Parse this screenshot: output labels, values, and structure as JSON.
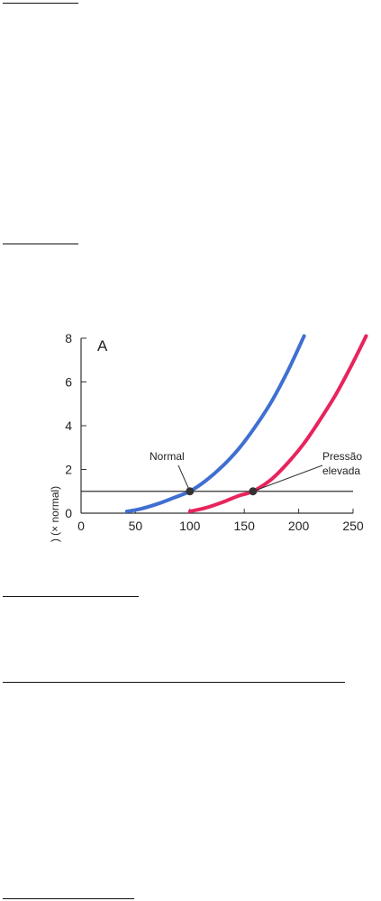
{
  "colors": {
    "normal_curve": "#3f6fd0",
    "elevated_curve": "#e8245c",
    "axis": "#333333",
    "marker": "#333333"
  },
  "chart_data": {
    "type": "line",
    "panel_label": "A",
    "xlabel": "",
    "ylabel": ") (× normal)",
    "xlim": [
      0,
      250
    ],
    "ylim": [
      0,
      8
    ],
    "x_ticks": [
      "0",
      "50",
      "100",
      "150",
      "200",
      "250"
    ],
    "y_ticks": [
      "0",
      "2",
      "4",
      "6",
      "8"
    ],
    "reference_line": {
      "y": 1
    },
    "series": [
      {
        "color_key": "normal_curve",
        "x": [
          42,
          55,
          70,
          85,
          100,
          115,
          130,
          145,
          160,
          175,
          190,
          205
        ],
        "y": [
          0.08,
          0.2,
          0.42,
          0.7,
          1.0,
          1.5,
          2.15,
          2.95,
          3.95,
          5.1,
          6.5,
          8.1
        ]
      },
      {
        "color_key": "elevated_curve",
        "x": [
          100,
          115,
          130,
          145,
          158,
          175,
          190,
          205,
          220,
          235,
          250,
          262
        ],
        "y": [
          0.08,
          0.25,
          0.5,
          0.8,
          1.0,
          1.55,
          2.3,
          3.2,
          4.3,
          5.5,
          6.9,
          8.1
        ]
      }
    ],
    "points": [
      {
        "x": 100,
        "y": 1
      },
      {
        "x": 158,
        "y": 1
      }
    ],
    "annotations": [
      {
        "text": "Normal"
      },
      {
        "text": "Pressão"
      },
      {
        "text": "elevada"
      }
    ]
  }
}
